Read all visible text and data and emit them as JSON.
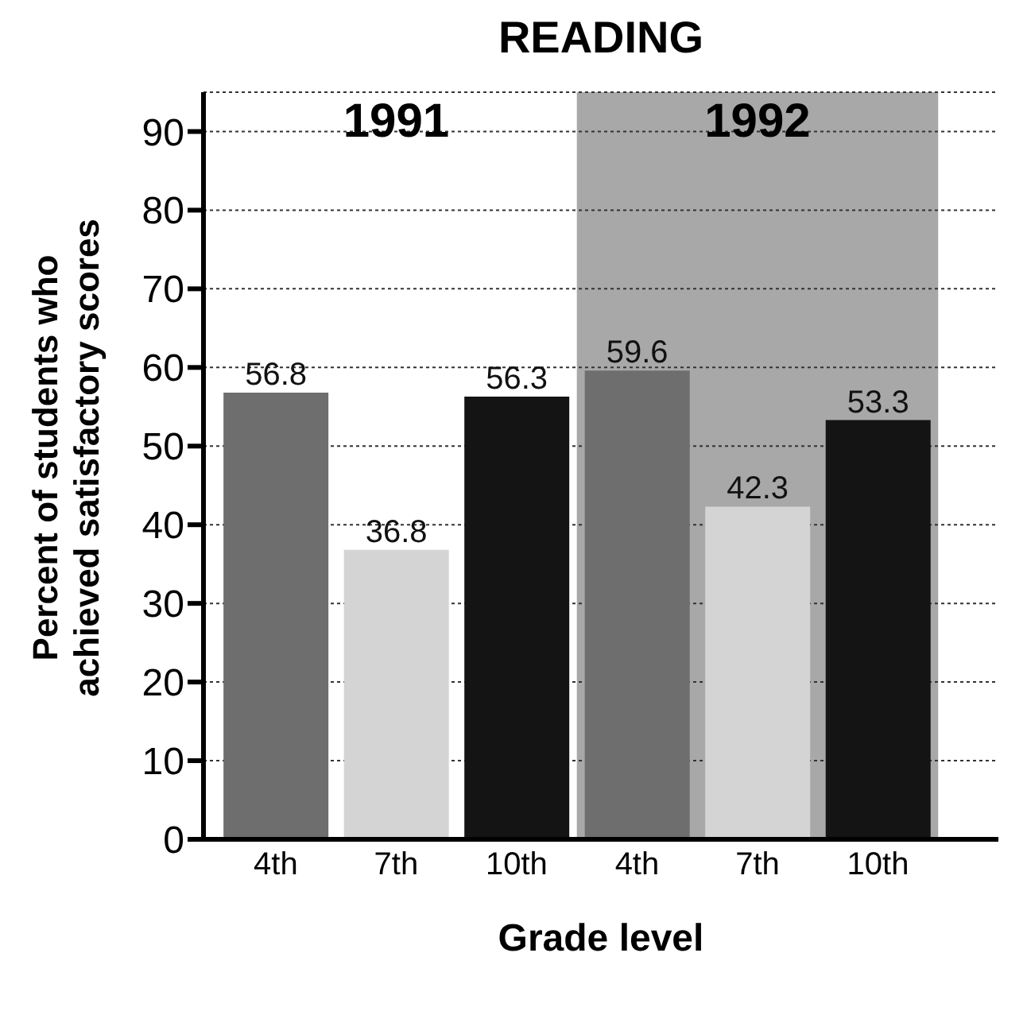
{
  "chart_data": {
    "type": "bar",
    "title": "READING",
    "xlabel": "Grade level",
    "ylabel": "Percent of students who achieved satisfactory scores",
    "categories": [
      "4th",
      "7th",
      "10th",
      "4th",
      "7th",
      "10th"
    ],
    "values": [
      56.8,
      36.8,
      56.3,
      59.6,
      42.3,
      53.3
    ],
    "colors": [
      "#6e6e6e",
      "#d4d4d4",
      "#141414",
      "#6e6e6e",
      "#d4d4d4",
      "#141414"
    ],
    "data_labels": true,
    "ylim": [
      0,
      95
    ],
    "yticks": [
      0,
      10,
      20,
      30,
      40,
      50,
      60,
      70,
      80,
      90
    ],
    "grid": "y",
    "annotations": [
      "1991",
      "1992"
    ]
  }
}
